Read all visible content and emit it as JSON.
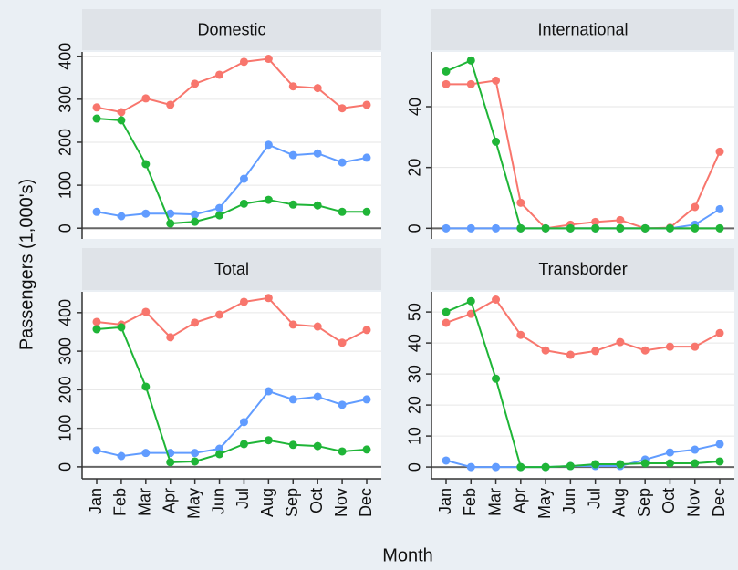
{
  "x_label": "Month",
  "y_label": "Passengers (1,000's)",
  "chart_data": [
    {
      "type": "line",
      "title": "Domestic",
      "categories": [
        "Jan",
        "Feb",
        "Mar",
        "Apr",
        "May",
        "Jun",
        "Jul",
        "Aug",
        "Sep",
        "Oct",
        "Nov",
        "Dec"
      ],
      "ylim": [
        -25,
        410
      ],
      "yticks": [
        0,
        100,
        200,
        300,
        400
      ],
      "grid": true,
      "series": [
        {
          "color": "#f8766d",
          "values": [
            281,
            270,
            302,
            287,
            336,
            357,
            387,
            394,
            330,
            326,
            279,
            287
          ]
        },
        {
          "color": "#619cff",
          "values": [
            38,
            28,
            34,
            34,
            32,
            47,
            115,
            194,
            170,
            174,
            153,
            164
          ]
        },
        {
          "color": "#1fb537",
          "values": [
            255,
            251,
            149,
            11,
            15,
            30,
            57,
            66,
            55,
            53,
            38,
            38
          ]
        }
      ]
    },
    {
      "type": "line",
      "title": "International",
      "categories": [
        "Jan",
        "Feb",
        "Mar",
        "Apr",
        "May",
        "Jun",
        "Jul",
        "Aug",
        "Sep",
        "Oct",
        "Nov",
        "Dec"
      ],
      "ylim": [
        -3.5,
        58
      ],
      "yticks": [
        0,
        20,
        40
      ],
      "grid": true,
      "series": [
        {
          "color": "#f8766d",
          "values": [
            47.4,
            47.4,
            48.6,
            8.4,
            0,
            1.2,
            2.1,
            2.7,
            0,
            0.2,
            7,
            25.2
          ]
        },
        {
          "color": "#619cff",
          "values": [
            0,
            0,
            0,
            0,
            0,
            0,
            0,
            0,
            0,
            0,
            1.2,
            6.3
          ]
        },
        {
          "color": "#1fb537",
          "values": [
            51.6,
            55.2,
            28.5,
            0,
            0,
            0,
            0,
            0,
            0,
            0,
            0,
            0
          ]
        }
      ]
    },
    {
      "type": "line",
      "title": "Total",
      "categories": [
        "Jan",
        "Feb",
        "Mar",
        "Apr",
        "May",
        "Jun",
        "Jul",
        "Aug",
        "Sep",
        "Oct",
        "Nov",
        "Dec"
      ],
      "ylim": [
        -31,
        454
      ],
      "yticks": [
        0,
        100,
        200,
        300,
        400
      ],
      "grid": true,
      "series": [
        {
          "color": "#f8766d",
          "values": [
            376,
            369,
            402,
            336,
            374,
            395,
            428,
            438,
            369,
            364,
            322,
            355
          ]
        },
        {
          "color": "#619cff",
          "values": [
            43,
            28,
            36,
            36,
            36,
            47,
            116,
            196,
            175,
            182,
            161,
            175
          ]
        },
        {
          "color": "#1fb537",
          "values": [
            357,
            362,
            208,
            12,
            14,
            33,
            59,
            69,
            57,
            54,
            40,
            45
          ]
        }
      ]
    },
    {
      "type": "line",
      "title": "Transborder",
      "categories": [
        "Jan",
        "Feb",
        "Mar",
        "Apr",
        "May",
        "Jun",
        "Jul",
        "Aug",
        "Sep",
        "Oct",
        "Nov",
        "Dec"
      ],
      "ylim": [
        -3.8,
        56.5
      ],
      "yticks": [
        0,
        10,
        20,
        30,
        40,
        50
      ],
      "grid": true,
      "series": [
        {
          "color": "#f8766d",
          "values": [
            46.5,
            49.4,
            54,
            42.6,
            37.6,
            36.2,
            37.4,
            40.3,
            37.6,
            38.8,
            38.8,
            43.2
          ]
        },
        {
          "color": "#619cff",
          "values": [
            2.1,
            0,
            0,
            0,
            0,
            0.3,
            0.3,
            0.3,
            2.4,
            4.7,
            5.6,
            7.4
          ]
        },
        {
          "color": "#1fb537",
          "values": [
            50,
            53.5,
            28.5,
            0,
            0,
            0.3,
            0.9,
            0.9,
            1.2,
            1.2,
            1.2,
            1.8
          ]
        }
      ]
    }
  ]
}
